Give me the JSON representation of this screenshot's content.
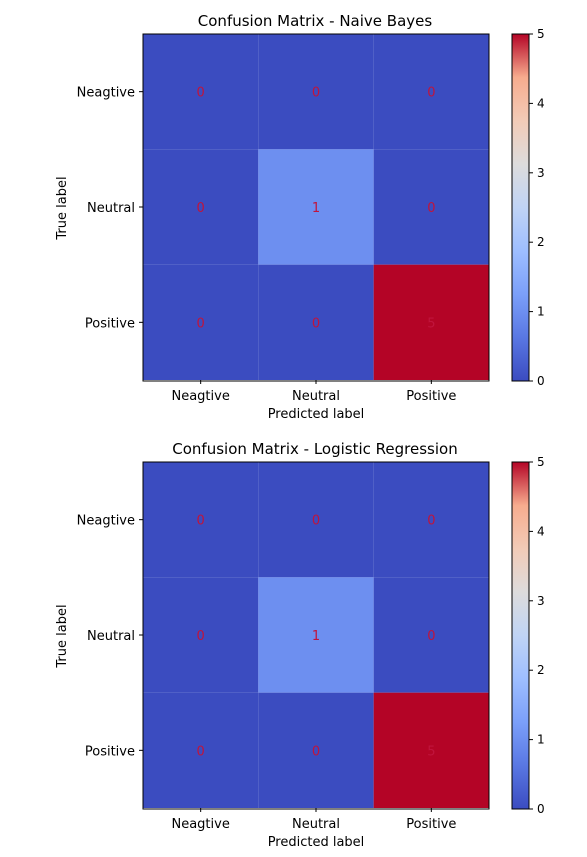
{
  "chart_data": [
    {
      "type": "heatmap",
      "title": "Confusion Matrix - Naive Bayes",
      "xlabel": "Predicted label",
      "ylabel": "True label",
      "x_categories": [
        "Neagtive",
        "Neutral",
        "Positive"
      ],
      "y_categories": [
        "Neagtive",
        "Neutral",
        "Positive"
      ],
      "values": [
        [
          0,
          0,
          0
        ],
        [
          0,
          1,
          0
        ],
        [
          0,
          0,
          5
        ]
      ],
      "colormap": "coolwarm",
      "colorbar": {
        "range": [
          0,
          5
        ],
        "ticks": [
          0,
          1,
          2,
          3,
          4,
          5
        ]
      },
      "cell_text_color": "#c0143c",
      "grid": false
    },
    {
      "type": "heatmap",
      "title": "Confusion Matrix - Logistic Regression",
      "xlabel": "Predicted label",
      "ylabel": "True label",
      "x_categories": [
        "Neagtive",
        "Neutral",
        "Positive"
      ],
      "y_categories": [
        "Neagtive",
        "Neutral",
        "Positive"
      ],
      "values": [
        [
          0,
          0,
          0
        ],
        [
          0,
          1,
          0
        ],
        [
          0,
          0,
          5
        ]
      ],
      "colormap": "coolwarm",
      "colorbar": {
        "range": [
          0,
          5
        ],
        "ticks": [
          0,
          1,
          2,
          3,
          4,
          5
        ]
      },
      "cell_text_color": "#c0143c",
      "grid": false
    }
  ]
}
